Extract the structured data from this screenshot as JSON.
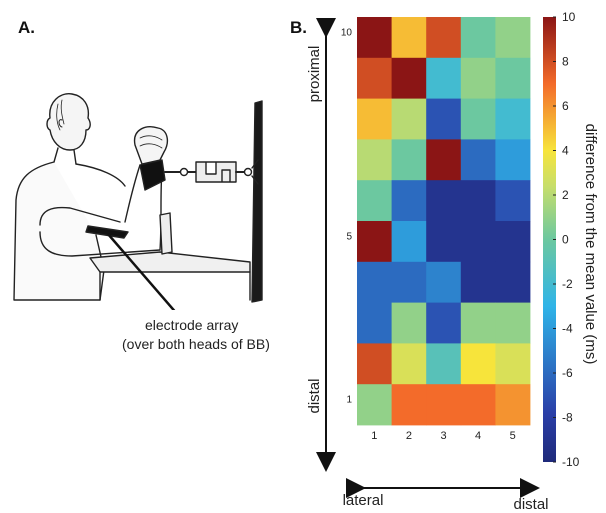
{
  "panels": {
    "a_label": "A.",
    "b_label": "B."
  },
  "illustration": {
    "caption_line1": "electrode array",
    "caption_line2": "(over both heads of BB)"
  },
  "chart_data": {
    "type": "heatmap",
    "rows": 10,
    "cols": 5,
    "row_order": "top-to-bottom (row 10 at top, row 1 at bottom)",
    "x_ticks": [
      "1",
      "2",
      "3",
      "4",
      "5"
    ],
    "y_ticks": [
      {
        "value": 10,
        "label": "10"
      },
      {
        "value": 5,
        "label": "5"
      },
      {
        "value": 1,
        "label": "1"
      }
    ],
    "values": [
      [
        10,
        5,
        8,
        0,
        1
      ],
      [
        8,
        10,
        -2,
        1,
        0
      ],
      [
        5,
        2,
        -7,
        0,
        -2
      ],
      [
        2,
        0,
        10,
        -6,
        -4
      ],
      [
        0,
        -6,
        -9,
        -9,
        -7
      ],
      [
        10,
        -4,
        -9,
        -9,
        -9
      ],
      [
        -6,
        -6,
        -5,
        -9,
        -9
      ],
      [
        -6,
        1,
        -7,
        1,
        1
      ],
      [
        8,
        3,
        -1,
        4,
        3
      ],
      [
        1,
        7,
        7,
        7,
        6
      ]
    ],
    "colorbar": {
      "min": -10,
      "max": 10,
      "ticks": [
        10,
        8,
        6,
        4,
        2,
        0,
        -2,
        -4,
        -6,
        -8,
        -10
      ],
      "tick_labels": [
        "10",
        "8",
        "6",
        "4",
        "2",
        "0",
        "-2",
        "-4",
        "-6",
        "-8",
        "-10"
      ],
      "label": "difference from the mean value (ms)",
      "colormap": "jet"
    },
    "y_axis": {
      "top_label": "proximal",
      "bottom_label": "distal"
    },
    "x_axis": {
      "left_label": "lateral",
      "right_label": "distal"
    }
  }
}
